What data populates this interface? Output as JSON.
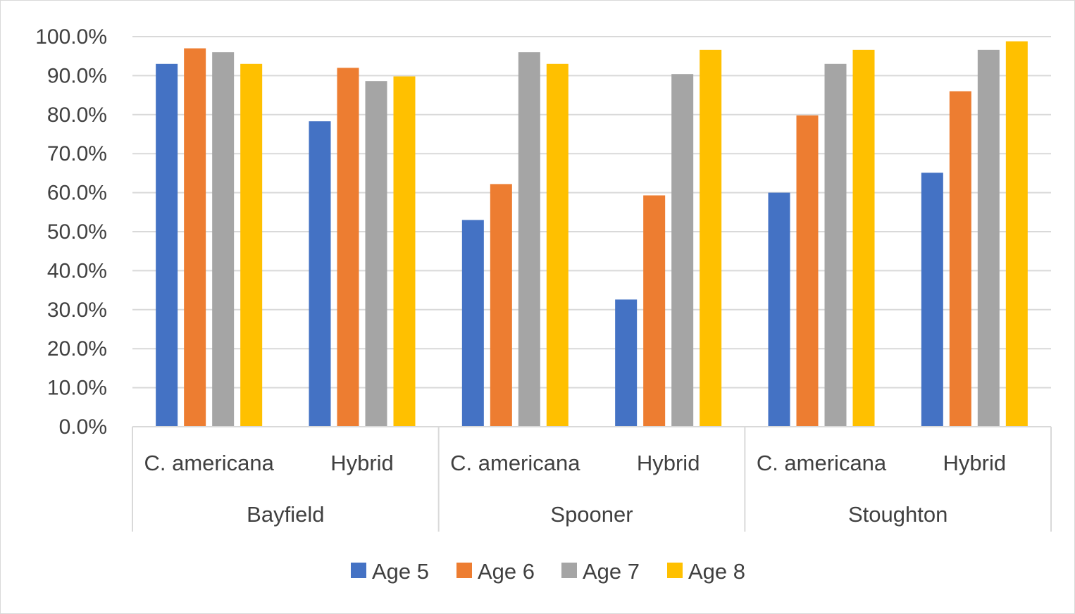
{
  "chart_data": {
    "type": "bar",
    "groups": [
      {
        "label": "Bayfield",
        "categories": [
          "C. americana",
          "Hybrid"
        ]
      },
      {
        "label": "Spooner",
        "categories": [
          "C. americana",
          "Hybrid"
        ]
      },
      {
        "label": "Stoughton",
        "categories": [
          "C. americana",
          "Hybrid"
        ]
      }
    ],
    "series": [
      {
        "name": "Age 5",
        "color": "#4472C4",
        "values": [
          93.0,
          78.3,
          53.0,
          32.6,
          60.0,
          65.1
        ]
      },
      {
        "name": "Age 6",
        "color": "#ED7D31",
        "values": [
          97.0,
          92.0,
          62.2,
          59.3,
          79.8,
          86.0
        ]
      },
      {
        "name": "Age 7",
        "color": "#A5A5A5",
        "values": [
          96.0,
          88.6,
          96.0,
          90.4,
          93.0,
          96.6
        ]
      },
      {
        "name": "Age 8",
        "color": "#FFC000",
        "values": [
          93.0,
          89.8,
          93.0,
          96.6,
          96.6,
          98.8
        ]
      }
    ],
    "ylim": [
      0,
      100
    ],
    "ytick_step": 10,
    "ytick_labels": [
      "0.0%",
      "10.0%",
      "20.0%",
      "30.0%",
      "40.0%",
      "50.0%",
      "60.0%",
      "70.0%",
      "80.0%",
      "90.0%",
      "100.0%"
    ],
    "grid": true,
    "legend_position": "bottom",
    "title": "",
    "xlabel": "",
    "ylabel": ""
  }
}
